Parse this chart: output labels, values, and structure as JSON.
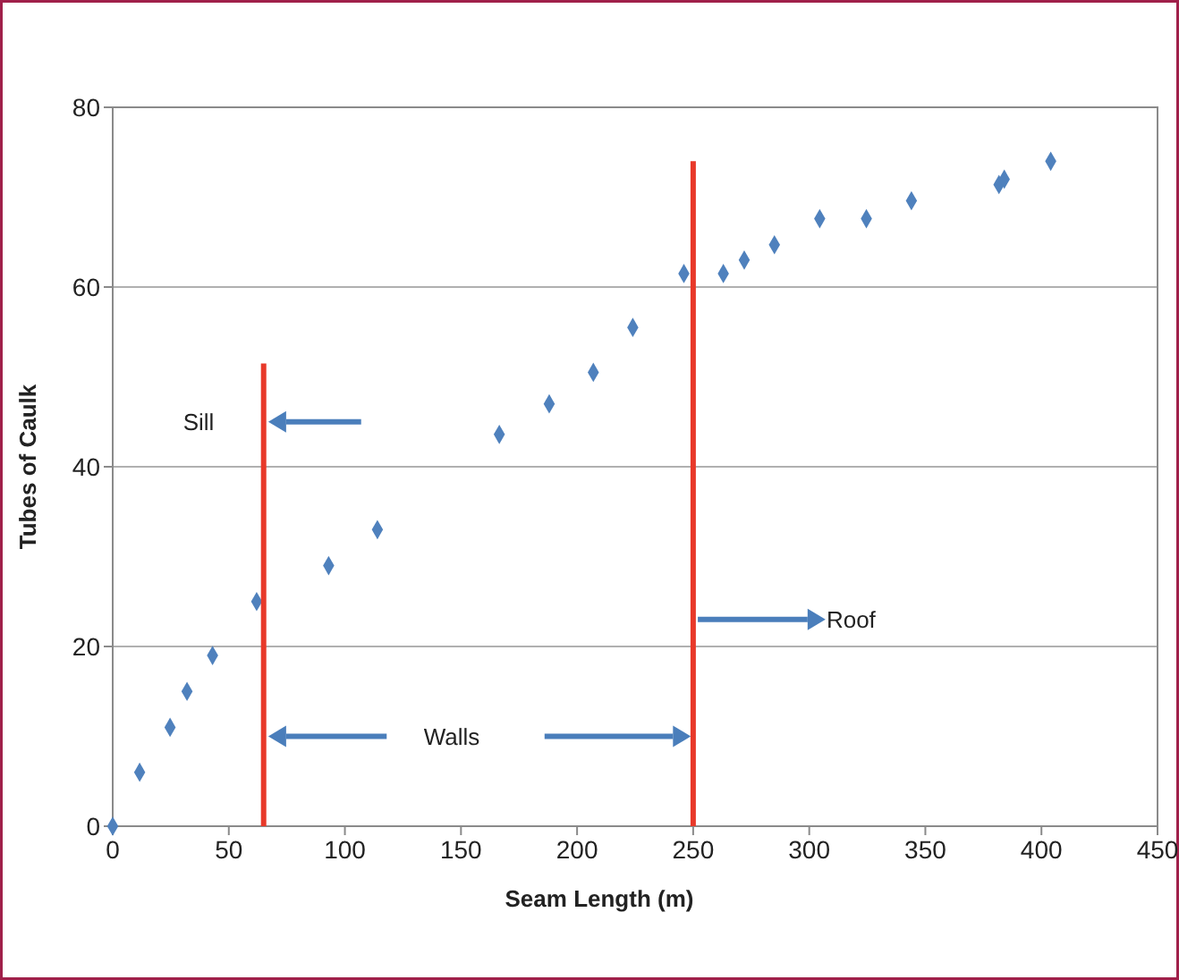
{
  "chart_data": {
    "type": "scatter",
    "xlabel": "Seam Length (m)",
    "ylabel": "Tubes of Caulk",
    "xlim": [
      0,
      450
    ],
    "ylim": [
      0,
      80
    ],
    "xticks": [
      0,
      50,
      100,
      150,
      200,
      250,
      300,
      350,
      400,
      450
    ],
    "yticks": [
      0,
      20,
      40,
      60,
      80
    ],
    "grid": "y",
    "marker": "diamond",
    "series": [
      {
        "color": "#4f81bd",
        "x": [
          0,
          11.6,
          24.7,
          32,
          43,
          62,
          93,
          114,
          166.5,
          188,
          207,
          224,
          246,
          263,
          272,
          285,
          304.5,
          324.6,
          344,
          381.7,
          384,
          404
        ],
        "values": [
          0,
          6,
          11,
          15,
          19,
          25,
          29,
          33,
          43.6,
          47,
          50.5,
          55.5,
          61.5,
          61.5,
          63,
          64.7,
          67.6,
          67.6,
          69.6,
          71.4,
          72,
          74
        ]
      },
      {
        "type": "line",
        "marker": "none",
        "color": "#e8392a",
        "x": [
          65,
          65
        ],
        "values": [
          0,
          51.5
        ]
      },
      {
        "type": "line",
        "marker": "none",
        "color": "#e8392a",
        "x": [
          250,
          250
        ],
        "values": [
          0,
          74
        ]
      }
    ],
    "annotations": [
      {
        "text": "Sill",
        "x": 65,
        "y": 45
      },
      "Walls",
      "Roof"
    ]
  }
}
